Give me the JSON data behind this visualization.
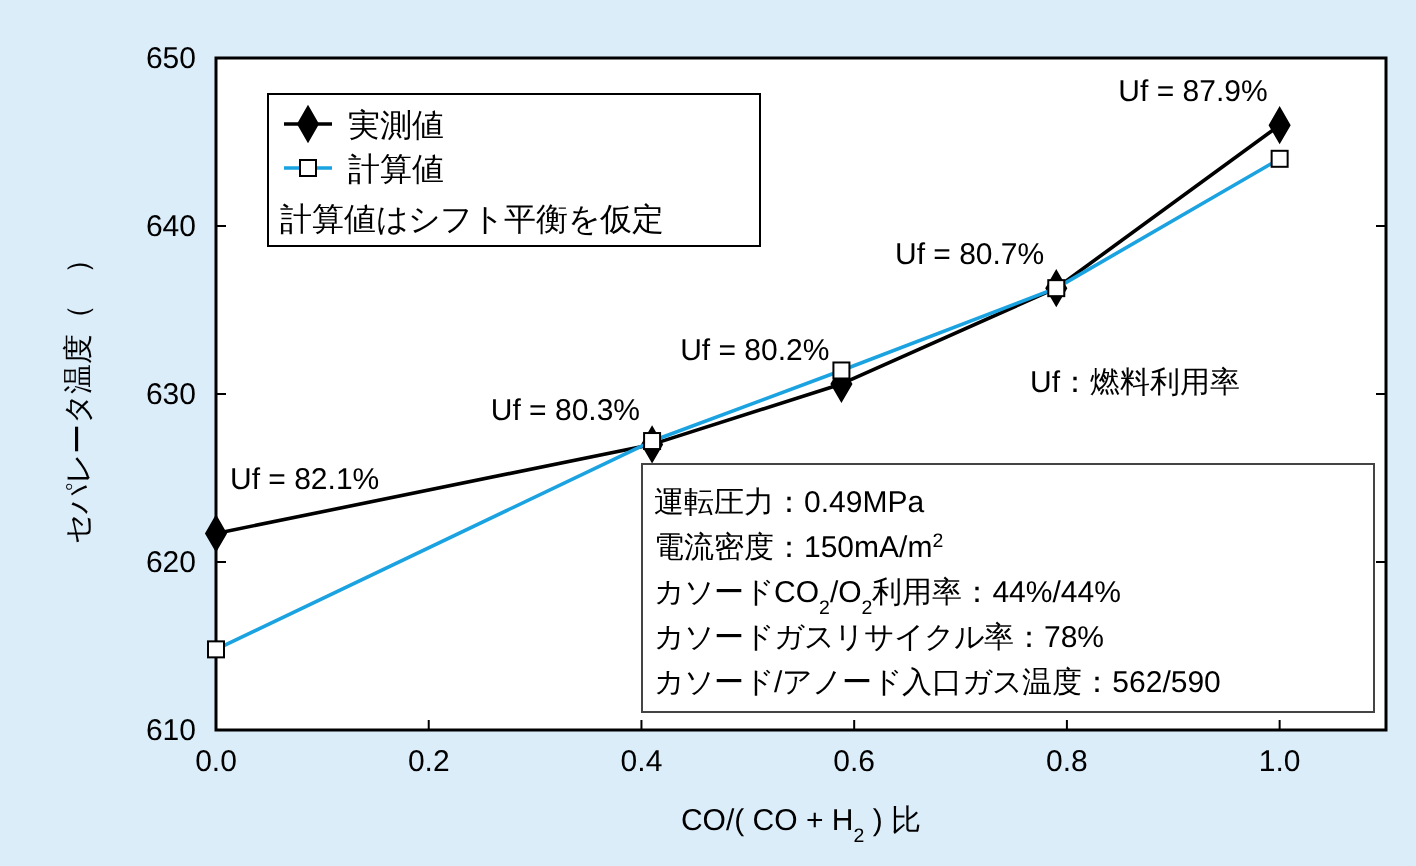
{
  "chart_data": {
    "type": "line",
    "xlabel": "CO/( CO + H$_{2}$ ) 比",
    "ylabel": "セパレータ温度（　）",
    "xlim": [
      0,
      1.1
    ],
    "xticks": [
      {
        "value": 0,
        "label": "0.0"
      },
      {
        "value": 0.2,
        "label": "0.2"
      },
      {
        "value": 0.4,
        "label": "0.4"
      },
      {
        "value": 0.6,
        "label": "0.6"
      },
      {
        "value": 0.8,
        "label": "0.8"
      },
      {
        "value": 1.0,
        "label": "1.0"
      }
    ],
    "ylim": [
      610,
      650
    ],
    "yticks": [
      610,
      620,
      630,
      640,
      650
    ],
    "x": [
      0,
      0.41,
      0.588,
      0.79,
      1.0
    ],
    "series": [
      {
        "name": "実測値",
        "color": "#000000",
        "marker": "diamond",
        "values": [
          621.7,
          627.0,
          630.6,
          636.3,
          646.0
        ]
      },
      {
        "name": "計算値",
        "color": "#1aa3e0",
        "marker": "square",
        "values": [
          614.8,
          627.2,
          631.4,
          636.3,
          644.0
        ]
      }
    ],
    "legend": "top left",
    "grid": false,
    "line_style": "solid",
    "annotations": [
      "計算値はシフト平衡を仮定",
      "Uf：燃料利用率",
      {
        "text": "Uf = 82.1%",
        "x": 0,
        "y": 621.7
      },
      {
        "text": "Uf = 80.3%",
        "x": 0.41,
        "y": 627.0
      },
      {
        "text": "Uf = 80.2%",
        "x": 0.588,
        "y": 630.6
      },
      {
        "text": "Uf = 80.7%",
        "x": 0.79,
        "y": 636.3
      },
      {
        "text": "Uf = 87.9%",
        "x": 1.0,
        "y": 646.0
      },
      "運転圧力：0.49MPa",
      "電流密度：150mA/m$^{2}$",
      "カソードCO$_{2}$/O$_{2}$利用率：44%/44%",
      "カソードガスリサイクル率：78%",
      "カソード/アノード入口ガス温度：562/590"
    ]
  }
}
